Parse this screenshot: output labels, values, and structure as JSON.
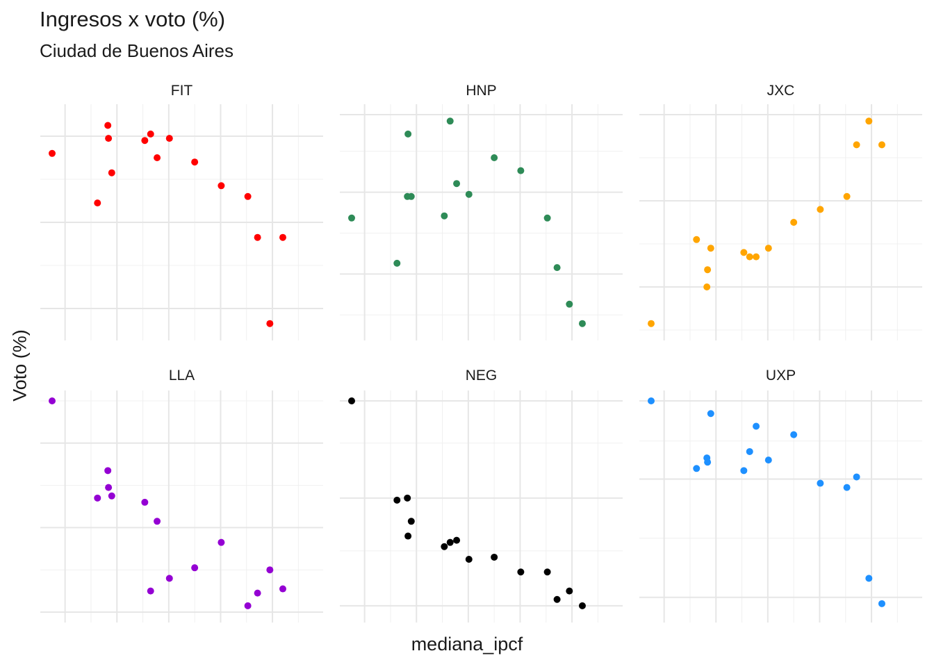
{
  "title": "Ingresos x voto (%)",
  "subtitle": "Ciudad de Buenos Aires",
  "chart_data": {
    "type": "scatter",
    "xlabel": "mediana_ipcf",
    "ylabel": "Voto (%)",
    "x_range": [
      0,
      20
    ],
    "facet_scales": "free_y",
    "grid": true,
    "legend": "none",
    "axis_tick_labels_shown": false,
    "x_breaks_major": [
      1,
      5,
      9,
      13,
      17
    ],
    "x_breaks_minor": [
      3,
      7,
      11,
      15,
      19
    ],
    "x": [
      0,
      3.5,
      4.3,
      4.35,
      4.6,
      7.15,
      7.6,
      8.1,
      9.05,
      11.0,
      13.05,
      15.1,
      15.85,
      16.8,
      17.8
    ],
    "panels": [
      {
        "name": "FIT",
        "color": "#ff0000",
        "y_range": [
          0,
          100
        ],
        "y_breaks_major": [
          10,
          50,
          90
        ],
        "y_breaks_minor": [
          30,
          70
        ],
        "y": [
          82,
          59,
          95,
          89,
          73,
          88,
          91,
          80,
          89,
          78,
          67,
          62,
          43,
          3,
          43
        ]
      },
      {
        "name": "HNP",
        "color": "#2e8b57",
        "y_range": [
          0,
          100
        ],
        "y_breaks_major": [
          26,
          64,
          100
        ],
        "y_breaks_minor": [
          7,
          45,
          83
        ],
        "y": [
          52,
          31,
          62,
          91,
          62,
          53,
          97,
          68,
          63,
          80,
          74,
          52,
          29,
          12,
          3
        ]
      },
      {
        "name": "JXC",
        "color": "#ffa500",
        "y_range": [
          0,
          100
        ],
        "y_breaks_major": [
          20,
          60,
          100
        ],
        "y_breaks_minor": [
          0,
          40,
          80
        ],
        "y": [
          3,
          42,
          20,
          28,
          38,
          36,
          34,
          34,
          38,
          50,
          56,
          62,
          86,
          97,
          86
        ]
      },
      {
        "name": "LLA",
        "color": "#9400d3",
        "y_range": [
          0,
          100
        ],
        "y_breaks_major": [
          0,
          40,
          80
        ],
        "y_breaks_minor": [
          20,
          60,
          100
        ],
        "y": [
          100,
          54,
          67,
          59,
          55,
          52,
          10,
          43,
          16,
          21,
          33,
          3,
          9,
          20,
          11
        ]
      },
      {
        "name": "NEG",
        "color": "#000000",
        "y_range": [
          0,
          100
        ],
        "y_breaks_major": [
          3,
          54,
          100
        ],
        "y_breaks_minor": [
          29,
          80
        ],
        "y": [
          100,
          53,
          54,
          36,
          43,
          31,
          33,
          34,
          25,
          26,
          19,
          19,
          6,
          10,
          3
        ]
      },
      {
        "name": "UXP",
        "color": "#1e90ff",
        "y_range": [
          0,
          100
        ],
        "y_breaks_major": [
          7,
          63,
          100
        ],
        "y_breaks_minor": [
          35,
          81
        ],
        "y": [
          100,
          68,
          73,
          71,
          94,
          67,
          76,
          88,
          72,
          84,
          61,
          59,
          64,
          16,
          4
        ]
      }
    ]
  }
}
